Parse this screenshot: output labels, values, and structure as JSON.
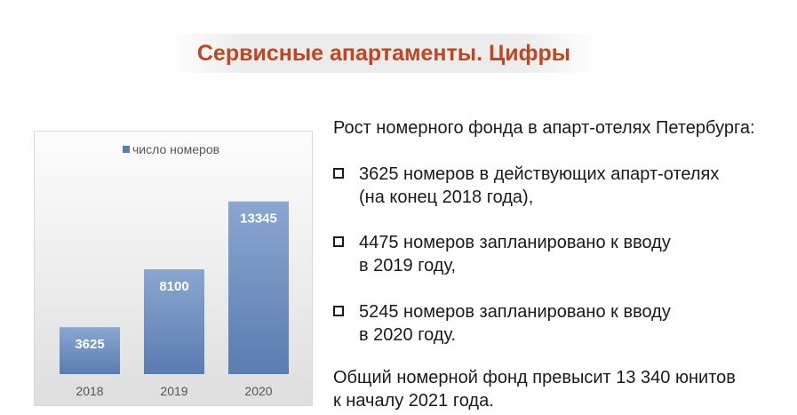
{
  "header": {
    "title": "Сервисные апартаменты. Цифры"
  },
  "chart_data": {
    "type": "bar",
    "categories": [
      "2018",
      "2019",
      "2020"
    ],
    "series": [
      {
        "name": "число номеров",
        "values": [
          3625,
          8100,
          13345
        ]
      }
    ],
    "data_labels": [
      "3625",
      "8100",
      "13345"
    ],
    "legend": "top",
    "grid": false,
    "ylim": [
      0,
      16000
    ],
    "color": "#5b7db1"
  },
  "text": {
    "intro": "Рост номерного фонда в апарт-отелях Петербурга:",
    "items": [
      {
        "line1": "3625 номеров в действующих апарт-отелях",
        "line2": "(на конец 2018 года),"
      },
      {
        "line1": "4475 номеров запланировано к вводу",
        "line2": "в 2019 году,"
      },
      {
        "line1": "5245 номеров запланировано к вводу",
        "line2": "в 2020 году."
      }
    ],
    "summary_line1": "Общий номерной фонд превысит 13 340 юнитов",
    "summary_line2": "к началу 2021 года."
  }
}
